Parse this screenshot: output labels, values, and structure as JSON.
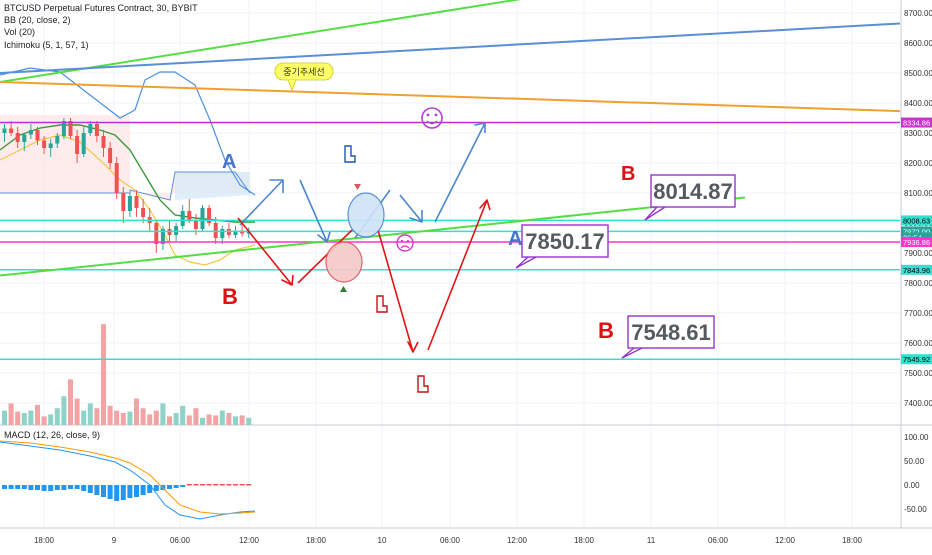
{
  "chart_data": {
    "type": "candlestick",
    "title": "BTCUSD Perpetual Futures Contract, 30, BYBIT",
    "indicators": [
      "BB (20, close, 2)",
      "Vol (20)",
      "Ichimoku (5, 1, 57, 1)"
    ],
    "macd_label": "MACD (12, 26, close, 9)",
    "x_ticks": [
      "18:00",
      "9",
      "06:00",
      "12:00",
      "18:00",
      "10",
      "06:00",
      "12:00",
      "18:00",
      "11",
      "06:00",
      "12:00",
      "18:00"
    ],
    "y_ticks": [
      8700,
      8600,
      8500,
      8400,
      8300,
      8200,
      8100,
      8000,
      7900,
      7800,
      7700,
      7600,
      7500,
      7400
    ],
    "y_tick_labels": [
      "8700.00",
      "8600.00",
      "8500.00",
      "8400.00",
      "8300.00",
      "8200.00",
      "8100.00",
      "8000.00",
      "7900.00",
      "7800.00",
      "7700.00",
      "7600.00",
      "7500.00",
      "7400.00"
    ],
    "macd_ticks": [
      "100.00",
      "50.00",
      "0.00",
      "-50.00"
    ],
    "macd_tick_values": [
      100,
      50,
      0,
      -50
    ],
    "price_tags": [
      {
        "label": "8334.86",
        "value": 8334.86,
        "color": "#cc33cc",
        "text_color": "#ffffff"
      },
      {
        "label": "8008.63",
        "value": 8008.63,
        "color": "#33e0d0",
        "text_color": "#000000"
      },
      {
        "label": "7972.00",
        "value": 7972.0,
        "color": "#26a69a",
        "text_color": "#ffffff"
      },
      {
        "label": "26:54",
        "value": 7952,
        "color": "#26a69a",
        "text_color": "#ffffff"
      },
      {
        "label": "7936.86",
        "value": 7936.86,
        "color": "#ff33cc",
        "text_color": "#ffffff"
      },
      {
        "label": "7843.96",
        "value": 7843.96,
        "color": "#33e0d0",
        "text_color": "#000000"
      },
      {
        "label": "7545.92",
        "value": 7545.92,
        "color": "#33e0d0",
        "text_color": "#000000"
      }
    ],
    "horizontal_lines": [
      {
        "value": 8334.86,
        "color": "#bb33cc"
      },
      {
        "value": 8008.63,
        "color": "#33e0d0"
      },
      {
        "value": 7972.0,
        "color": "#33e0d0"
      },
      {
        "value": 7936.86,
        "color": "#ff33cc"
      },
      {
        "value": 7843.96,
        "color": "#33e0d0"
      },
      {
        "value": 7545.92,
        "color": "#33e0d0"
      }
    ],
    "trendlines": [
      {
        "color": "#55dd44",
        "from": [
          0,
          8470
        ],
        "to": [
          565,
          8770
        ]
      },
      {
        "color": "#5a8fd6",
        "from": [
          0,
          8500
        ],
        "to": [
          900,
          8665
        ]
      },
      {
        "color": "#f0a030",
        "from": [
          0,
          8470
        ],
        "to": [
          900,
          8373
        ]
      },
      {
        "color": "#55dd44",
        "from": [
          0,
          7825
        ],
        "to": [
          745,
          8085
        ]
      }
    ],
    "annotations": [
      {
        "text": "8014.87",
        "box_color": "#9933cc"
      },
      {
        "text": "7850.17",
        "box_color": "#9933cc"
      },
      {
        "text": "7548.61",
        "box_color": "#9933cc"
      },
      {
        "text": "중기추세선",
        "bubble_color": "#ffff66"
      },
      {
        "text": "A",
        "color": "#4477cc"
      },
      {
        "text": "A",
        "color": "#4477cc"
      },
      {
        "text": "B",
        "color": "#dd1111"
      },
      {
        "text": "B",
        "color": "#dd1111"
      },
      {
        "text": "B",
        "color": "#dd1111"
      }
    ],
    "candles": [
      [
        8300,
        8330,
        8270,
        8315
      ],
      [
        8315,
        8340,
        8290,
        8300
      ],
      [
        8300,
        8320,
        8250,
        8270
      ],
      [
        8270,
        8300,
        8240,
        8295
      ],
      [
        8295,
        8330,
        8280,
        8310
      ],
      [
        8310,
        8320,
        8260,
        8275
      ],
      [
        8275,
        8290,
        8230,
        8250
      ],
      [
        8250,
        8280,
        8220,
        8265
      ],
      [
        8265,
        8300,
        8250,
        8290
      ],
      [
        8290,
        8350,
        8280,
        8340
      ],
      [
        8340,
        8350,
        8280,
        8290
      ],
      [
        8290,
        8310,
        8200,
        8230
      ],
      [
        8230,
        8320,
        8220,
        8300
      ],
      [
        8300,
        8340,
        8290,
        8330
      ],
      [
        8330,
        8340,
        8270,
        8290
      ],
      [
        8290,
        8310,
        8220,
        8250
      ],
      [
        8250,
        8270,
        8180,
        8200
      ],
      [
        8200,
        8220,
        8080,
        8100
      ],
      [
        8100,
        8120,
        8000,
        8040
      ],
      [
        8040,
        8100,
        8020,
        8090
      ],
      [
        8090,
        8110,
        8020,
        8050
      ],
      [
        8050,
        8080,
        8000,
        8020
      ],
      [
        8020,
        8050,
        7970,
        8000
      ],
      [
        8000,
        8010,
        7900,
        7930
      ],
      [
        7930,
        7990,
        7910,
        7980
      ],
      [
        7980,
        8010,
        7940,
        7960
      ],
      [
        7960,
        8000,
        7940,
        7990
      ],
      [
        7990,
        8060,
        7980,
        8040
      ],
      [
        8040,
        8080,
        8000,
        8010
      ],
      [
        8010,
        8030,
        7960,
        7980
      ],
      [
        7980,
        8060,
        7970,
        8050
      ],
      [
        8050,
        8060,
        7990,
        8000
      ],
      [
        8000,
        8020,
        7930,
        7950
      ],
      [
        7950,
        7990,
        7930,
        7980
      ],
      [
        7980,
        8000,
        7950,
        7960
      ],
      [
        7960,
        7990,
        7950,
        7975
      ],
      [
        7975,
        7995,
        7955,
        7965
      ],
      [
        7965,
        7985,
        7950,
        7972
      ]
    ],
    "volumes": [
      30,
      45,
      28,
      25,
      30,
      42,
      18,
      22,
      35,
      60,
      95,
      55,
      30,
      45,
      35,
      210,
      40,
      30,
      25,
      28,
      55,
      35,
      22,
      30,
      45,
      18,
      25,
      40,
      20,
      35,
      15,
      22,
      20,
      30,
      25,
      18,
      20,
      15
    ]
  }
}
